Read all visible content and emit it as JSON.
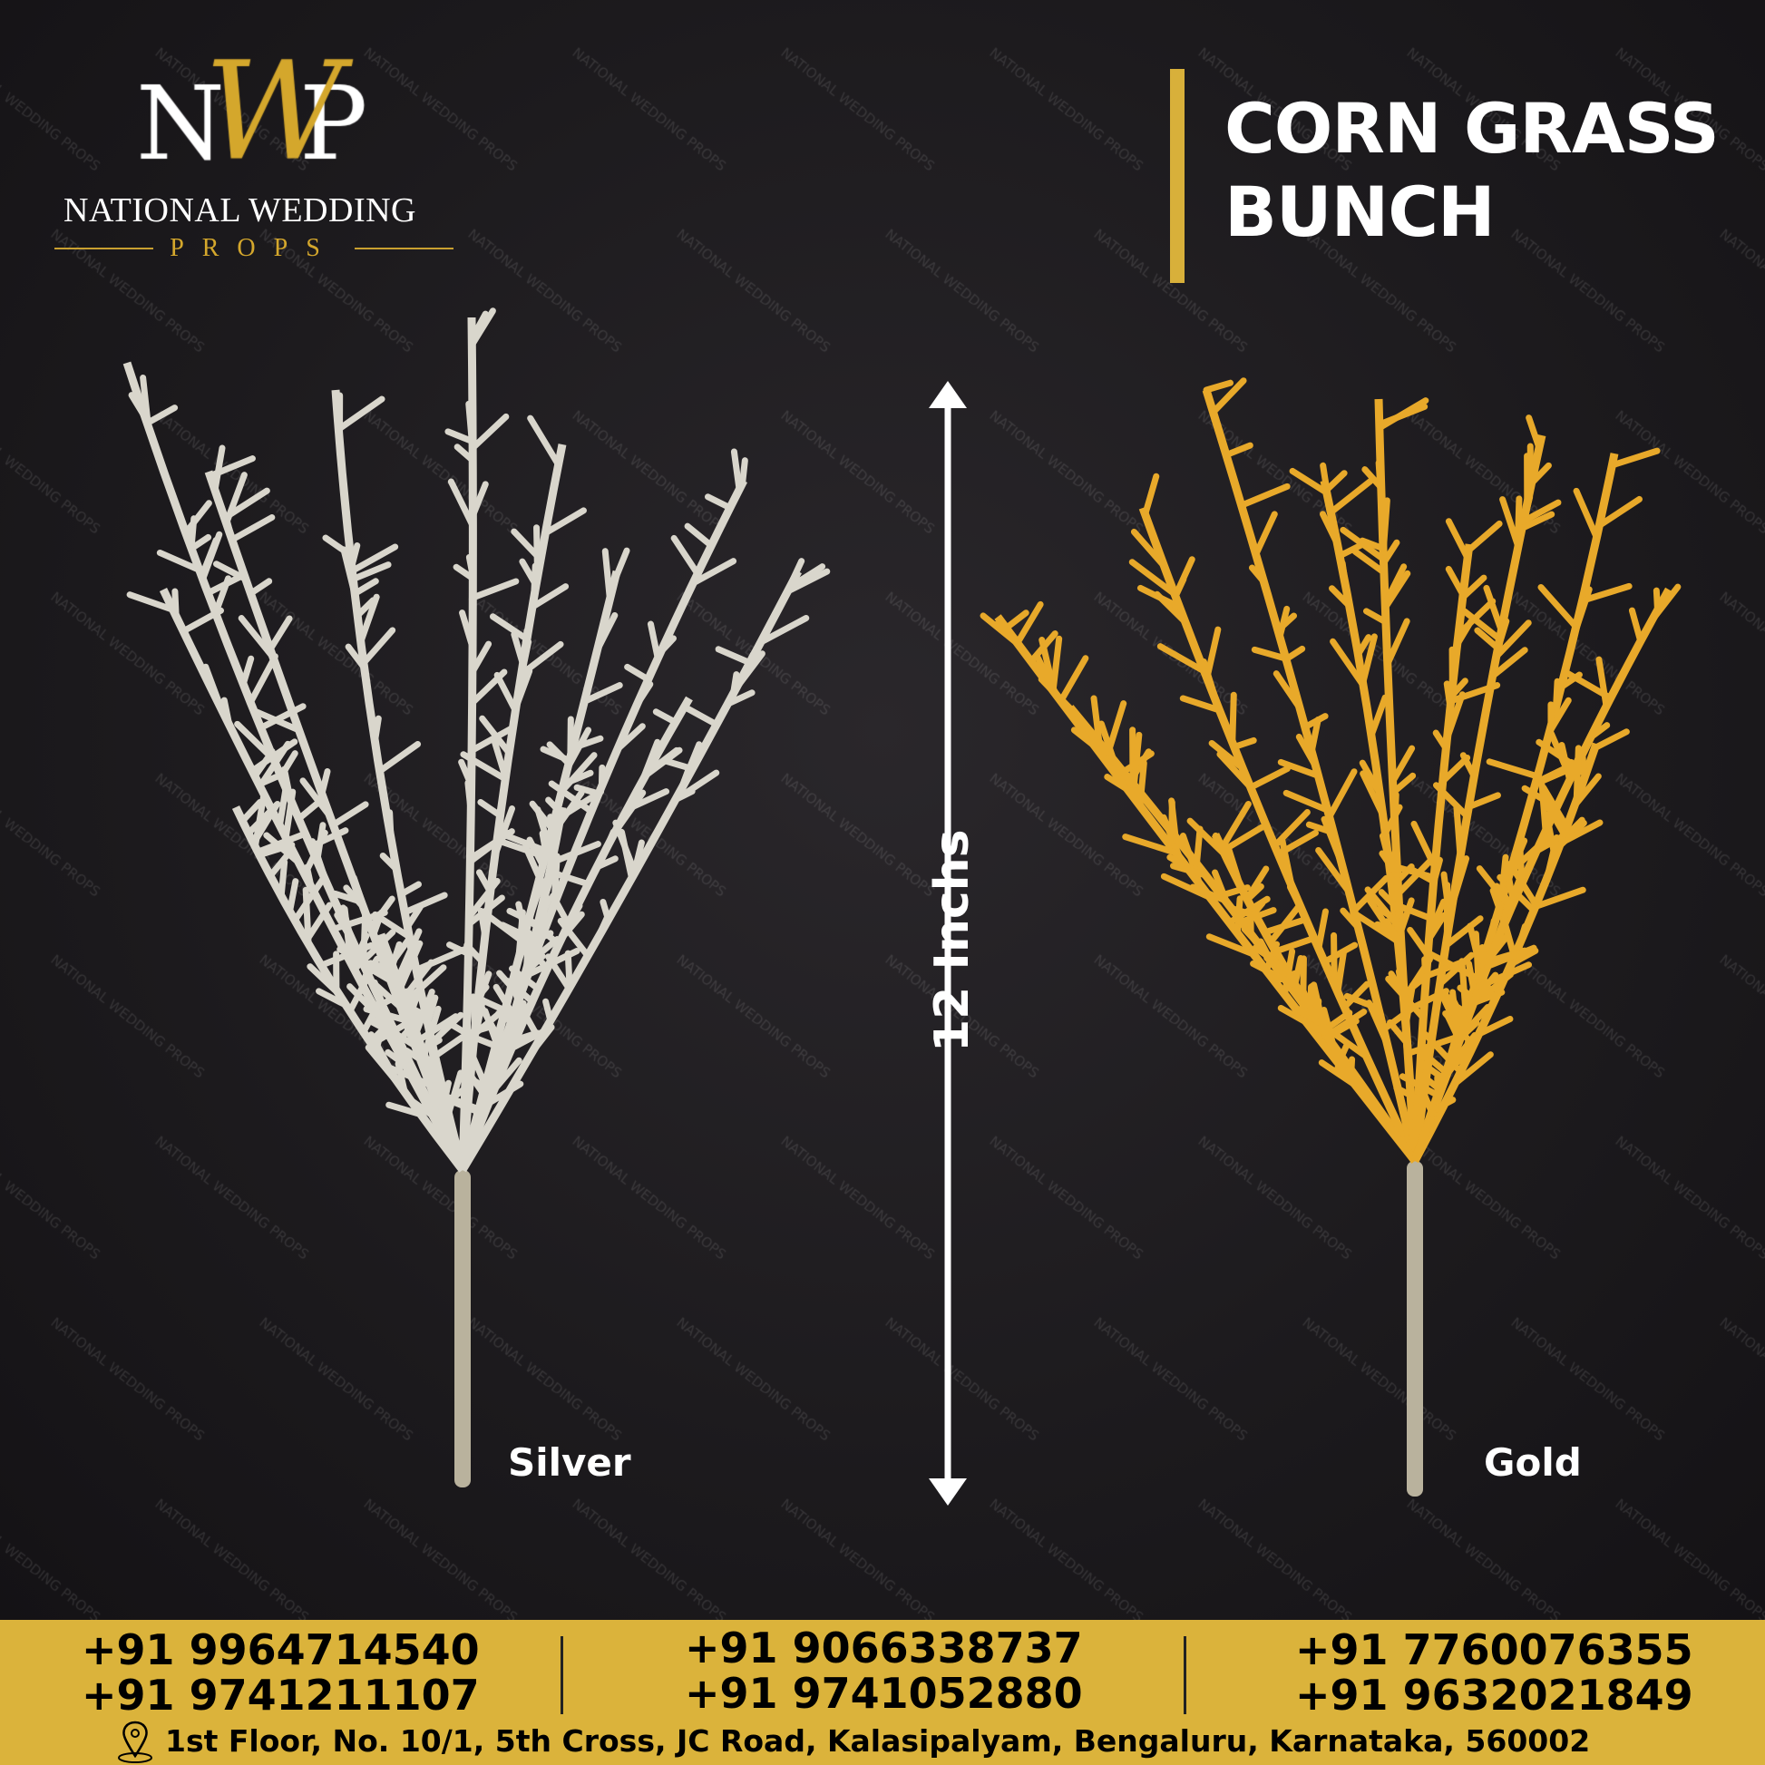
{
  "brand": {
    "monogram": "NWP",
    "name": "NATIONAL WEDDING",
    "sub": "PROPS",
    "watermark": "NATIONAL WEDDING PROPS",
    "gold": "#d4a72c"
  },
  "product": {
    "title_line1": "CORN GRASS",
    "title_line2": "BUNCH",
    "height": "12 Inchs"
  },
  "variants": [
    {
      "label": "Silver",
      "color": "#d9d6cc"
    },
    {
      "label": "Gold",
      "color": "#e8a92a"
    }
  ],
  "footer": {
    "background": "#dbb33b",
    "phones": [
      [
        "+91 9964714540",
        "+91 9741211107"
      ],
      [
        "+91 9066338737",
        "+91 9741052880"
      ],
      [
        "+91 7760076355",
        "+91 9632021849"
      ]
    ],
    "address": "1st Floor, No. 10/1, 5th Cross, JC Road, Kalasipalyam, Bengaluru, Karnataka, 560002",
    "address_icon": "location-pin-icon"
  }
}
